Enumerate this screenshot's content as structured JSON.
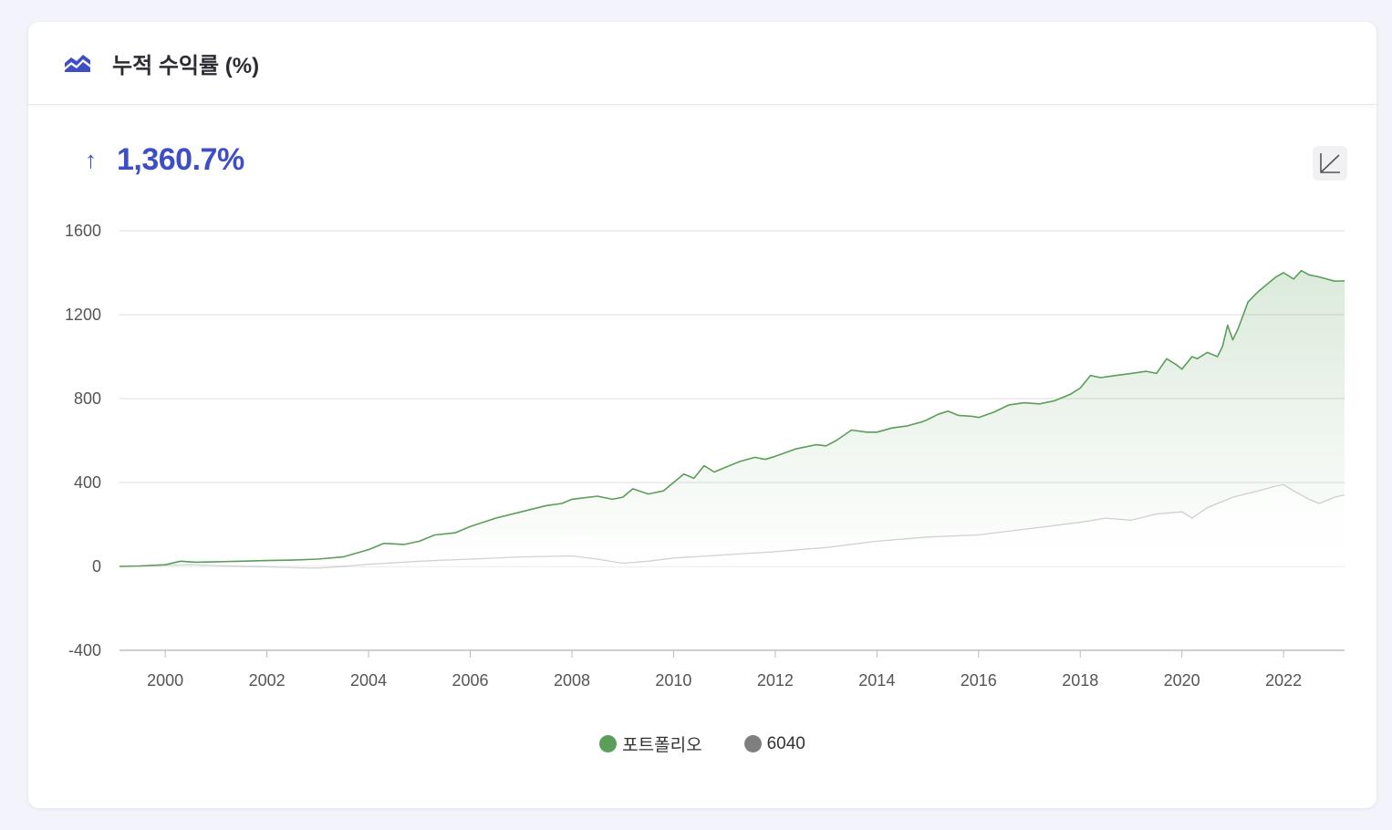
{
  "header": {
    "title": "누적 수익률 (%)",
    "icon": "area-chart-icon"
  },
  "kpi": {
    "arrow": "↑",
    "value": "1,360.7%",
    "color": "#3e4fc6"
  },
  "toolbar": {
    "scale_icon": "axis-scale-icon"
  },
  "legend": [
    {
      "label": "포트폴리오",
      "color": "#5a9e5a"
    },
    {
      "label": "6040",
      "color": "#7f7f7f"
    }
  ],
  "chart_data": {
    "type": "area",
    "title": "",
    "xlabel": "",
    "ylabel": "",
    "xlim": [
      1999.1,
      2023.2
    ],
    "ylim": [
      -400,
      1600
    ],
    "x_ticks": [
      2000,
      2002,
      2004,
      2006,
      2008,
      2010,
      2012,
      2014,
      2016,
      2018,
      2020,
      2022
    ],
    "y_ticks": [
      1600,
      1200,
      800,
      400,
      0,
      -400
    ],
    "grid": true,
    "legend_position": "bottom",
    "series": [
      {
        "name": "포트폴리오",
        "color": "#5a9e5a",
        "points": [
          [
            1999.1,
            0
          ],
          [
            1999.5,
            2
          ],
          [
            2000.0,
            8
          ],
          [
            2000.3,
            25
          ],
          [
            2000.6,
            20
          ],
          [
            2001.0,
            22
          ],
          [
            2001.5,
            25
          ],
          [
            2002.0,
            28
          ],
          [
            2002.5,
            30
          ],
          [
            2003.0,
            35
          ],
          [
            2003.5,
            45
          ],
          [
            2004.0,
            80
          ],
          [
            2004.3,
            110
          ],
          [
            2004.7,
            105
          ],
          [
            2005.0,
            120
          ],
          [
            2005.3,
            150
          ],
          [
            2005.7,
            160
          ],
          [
            2006.0,
            190
          ],
          [
            2006.5,
            230
          ],
          [
            2007.0,
            260
          ],
          [
            2007.5,
            290
          ],
          [
            2007.8,
            300
          ],
          [
            2008.0,
            320
          ],
          [
            2008.5,
            335
          ],
          [
            2008.8,
            320
          ],
          [
            2009.0,
            330
          ],
          [
            2009.2,
            370
          ],
          [
            2009.5,
            345
          ],
          [
            2009.8,
            360
          ],
          [
            2010.0,
            400
          ],
          [
            2010.2,
            440
          ],
          [
            2010.4,
            420
          ],
          [
            2010.6,
            480
          ],
          [
            2010.8,
            450
          ],
          [
            2011.0,
            470
          ],
          [
            2011.3,
            500
          ],
          [
            2011.6,
            520
          ],
          [
            2011.8,
            510
          ],
          [
            2012.0,
            525
          ],
          [
            2012.4,
            560
          ],
          [
            2012.8,
            580
          ],
          [
            2013.0,
            575
          ],
          [
            2013.2,
            600
          ],
          [
            2013.5,
            650
          ],
          [
            2013.8,
            640
          ],
          [
            2014.0,
            640
          ],
          [
            2014.3,
            660
          ],
          [
            2014.6,
            670
          ],
          [
            2014.9,
            690
          ],
          [
            2015.0,
            700
          ],
          [
            2015.2,
            725
          ],
          [
            2015.4,
            740
          ],
          [
            2015.6,
            720
          ],
          [
            2015.9,
            715
          ],
          [
            2016.0,
            710
          ],
          [
            2016.3,
            735
          ],
          [
            2016.6,
            770
          ],
          [
            2016.9,
            780
          ],
          [
            2017.2,
            775
          ],
          [
            2017.5,
            790
          ],
          [
            2017.8,
            820
          ],
          [
            2018.0,
            850
          ],
          [
            2018.2,
            910
          ],
          [
            2018.4,
            900
          ],
          [
            2018.7,
            910
          ],
          [
            2019.0,
            920
          ],
          [
            2019.3,
            930
          ],
          [
            2019.5,
            920
          ],
          [
            2019.7,
            990
          ],
          [
            2019.9,
            960
          ],
          [
            2020.0,
            940
          ],
          [
            2020.2,
            1000
          ],
          [
            2020.3,
            990
          ],
          [
            2020.5,
            1020
          ],
          [
            2020.7,
            1000
          ],
          [
            2020.8,
            1050
          ],
          [
            2020.9,
            1150
          ],
          [
            2021.0,
            1080
          ],
          [
            2021.1,
            1130
          ],
          [
            2021.3,
            1260
          ],
          [
            2021.5,
            1310
          ],
          [
            2021.7,
            1350
          ],
          [
            2021.85,
            1380
          ],
          [
            2022.0,
            1400
          ],
          [
            2022.2,
            1370
          ],
          [
            2022.35,
            1410
          ],
          [
            2022.5,
            1390
          ],
          [
            2022.7,
            1380
          ],
          [
            2022.85,
            1370
          ],
          [
            2023.0,
            1360
          ],
          [
            2023.2,
            1360.7
          ]
        ]
      },
      {
        "name": "6040",
        "color": "#7f7f7f",
        "points": [
          [
            1999.1,
            0
          ],
          [
            1999.5,
            2
          ],
          [
            2000.0,
            5
          ],
          [
            2000.5,
            8
          ],
          [
            2001.0,
            4
          ],
          [
            2001.5,
            0
          ],
          [
            2002.0,
            -2
          ],
          [
            2002.5,
            -6
          ],
          [
            2003.0,
            -8
          ],
          [
            2003.5,
            0
          ],
          [
            2004.0,
            10
          ],
          [
            2005.0,
            25
          ],
          [
            2006.0,
            35
          ],
          [
            2007.0,
            45
          ],
          [
            2008.0,
            50
          ],
          [
            2008.5,
            35
          ],
          [
            2009.0,
            15
          ],
          [
            2009.5,
            25
          ],
          [
            2010.0,
            40
          ],
          [
            2011.0,
            55
          ],
          [
            2012.0,
            70
          ],
          [
            2013.0,
            90
          ],
          [
            2014.0,
            120
          ],
          [
            2015.0,
            140
          ],
          [
            2016.0,
            150
          ],
          [
            2017.0,
            180
          ],
          [
            2018.0,
            210
          ],
          [
            2018.5,
            230
          ],
          [
            2019.0,
            220
          ],
          [
            2019.5,
            250
          ],
          [
            2020.0,
            260
          ],
          [
            2020.2,
            230
          ],
          [
            2020.5,
            280
          ],
          [
            2021.0,
            330
          ],
          [
            2021.5,
            360
          ],
          [
            2021.8,
            380
          ],
          [
            2022.0,
            390
          ],
          [
            2022.2,
            360
          ],
          [
            2022.5,
            320
          ],
          [
            2022.7,
            300
          ],
          [
            2023.0,
            330
          ],
          [
            2023.2,
            340
          ]
        ]
      }
    ]
  }
}
